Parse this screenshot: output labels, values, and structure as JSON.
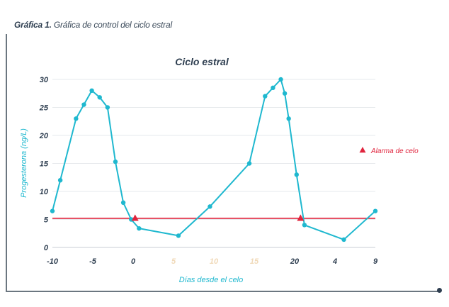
{
  "caption": {
    "label": "Gráfica 1.",
    "text": "Gráfica de control del ciclo estral"
  },
  "chart_data": {
    "type": "line",
    "title": "Ciclo estral",
    "xlabel": "Días desde el celo",
    "ylabel": "Progesterona (ng/L)",
    "ylim": [
      0,
      30
    ],
    "yticks": [
      0,
      5,
      10,
      15,
      20,
      25,
      30
    ],
    "xticks": [
      "-10",
      "-5",
      "0",
      "5",
      "10",
      "15",
      "20",
      "4",
      "9"
    ],
    "xticks_faded": [
      false,
      false,
      false,
      true,
      true,
      true,
      false,
      false,
      false
    ],
    "grid": "horizontal",
    "legend_position": "right",
    "series": [
      {
        "x": [
          -11,
          -10,
          -8,
          -7,
          -6,
          -5,
          -4,
          -3,
          -2,
          -1,
          0,
          5,
          9,
          14,
          16,
          17,
          18,
          18.5,
          19,
          20,
          21,
          26,
          30
        ],
        "y": [
          6.5,
          12,
          23,
          25.5,
          28,
          26.8,
          25,
          15.3,
          8,
          5,
          3.4,
          2.1,
          7.3,
          15,
          27,
          28.5,
          30,
          27.5,
          23,
          13,
          4,
          1.4,
          6.5
        ],
        "color": "#1fb8cf"
      }
    ],
    "threshold": {
      "y": 5.2,
      "color": "#e0243d"
    },
    "alarms": {
      "name": "Alarma de celo",
      "color": "#e0243d",
      "x": [
        -0.5,
        20.5
      ],
      "y": [
        5.2,
        5.2
      ]
    }
  }
}
